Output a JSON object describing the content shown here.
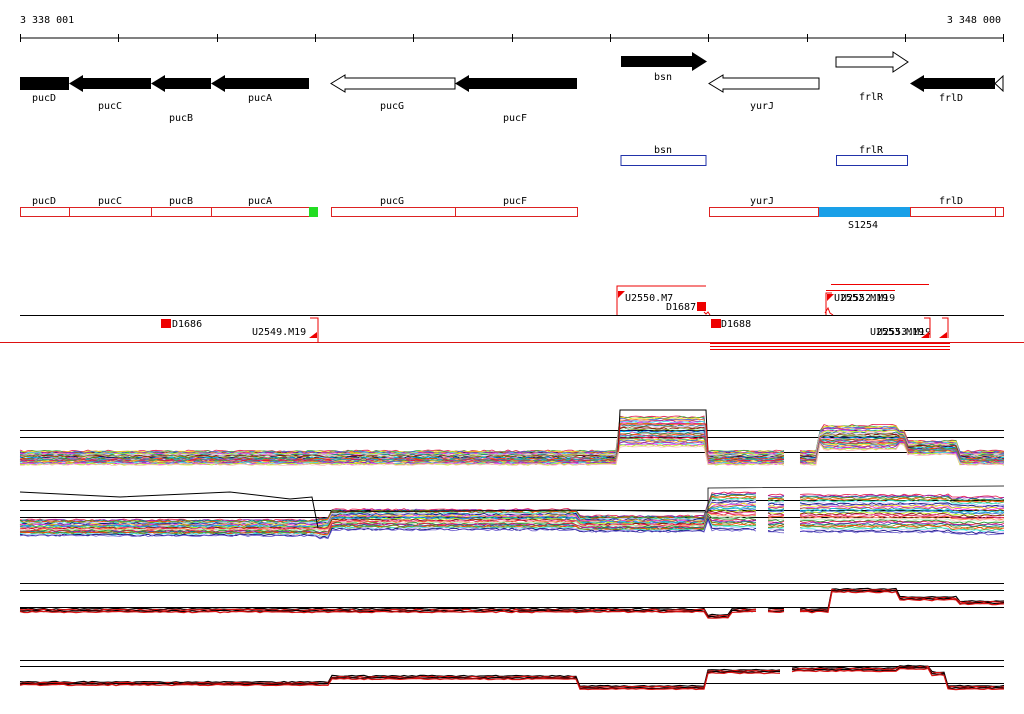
{
  "ruler": {
    "start_label": "3 338 001",
    "end_label": "3 348 000"
  },
  "genes": {
    "pucD": "pucD",
    "pucC": "pucC",
    "pucB": "pucB",
    "pucA": "pucA",
    "pucG": "pucG",
    "pucF": "pucF",
    "bsn": "bsn",
    "yurJ": "yurJ",
    "frlR": "frlR",
    "frlD": "frlD"
  },
  "segments": {
    "S1254": "S1254"
  },
  "features": {
    "D1686": "D1686",
    "U2549_M19": "U2549.M19",
    "U2550_M7": "U2550.M7",
    "D1687": "D1687",
    "D1688": "D1688",
    "overlap_top": "U2552.M19",
    "overlap_bottom": "U2553.M19"
  },
  "colors": {
    "gene_fill": "#000000",
    "operon_outline": "#dd2222",
    "tss_outline": "#2233aa",
    "highlight_green": "#22dd22",
    "highlight_blue": "#1aa0e8",
    "feature_red": "#ee0000",
    "trace_black": "#000000",
    "trace_red": "#dd1111"
  },
  "icons": {
    "solid_arrow": "filled-gene-arrow",
    "open_arrow": "outline-gene-arrow",
    "promoter_flag": "promoter-flag",
    "terminator_square": "terminator-square"
  },
  "tracks": [
    "genes",
    "tss",
    "operons",
    "features",
    "expression-panel-1",
    "expression-panel-2",
    "expression-panel-3",
    "expression-panel-4"
  ]
}
